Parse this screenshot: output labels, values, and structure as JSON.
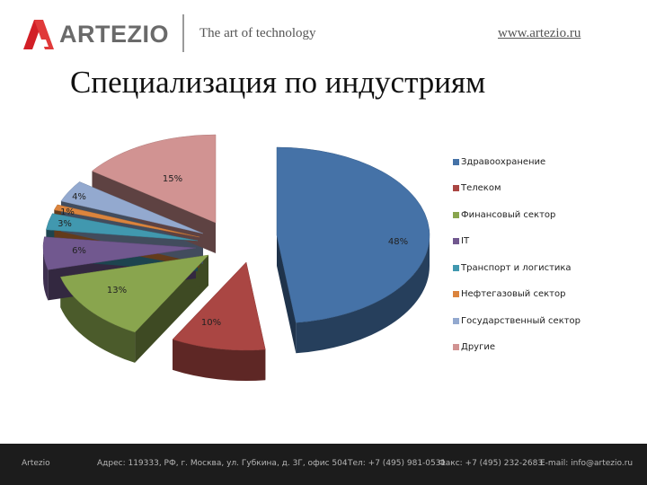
{
  "header": {
    "brand": "ARTEZIO",
    "tagline": "The art of technology",
    "website": "www.artezio.ru"
  },
  "slide": {
    "title": "Специализация по индустриям"
  },
  "chart_data": {
    "type": "pie",
    "three_d": true,
    "legend_position": "right",
    "series": [
      {
        "name": "Здравоохранение",
        "value": 48,
        "label": "48%",
        "color": "#4572A7"
      },
      {
        "name": "Телеком",
        "value": 10,
        "label": "10%",
        "color": "#AA4643"
      },
      {
        "name": "Финансовый сектор",
        "value": 13,
        "label": "13%",
        "color": "#89A54E"
      },
      {
        "name": "IT",
        "value": 6,
        "label": "6%",
        "color": "#71588F"
      },
      {
        "name": "Транспорт и логистика",
        "value": 3,
        "label": "3%",
        "color": "#4198AF"
      },
      {
        "name": "Нефтегазовый сектор",
        "value": 1,
        "label": "1%",
        "color": "#DB843D"
      },
      {
        "name": "Государственный сектор",
        "value": 4,
        "label": "4%",
        "color": "#93A9CF"
      },
      {
        "name": "Другие",
        "value": 15,
        "label": "15%",
        "color": "#D19392"
      }
    ]
  },
  "footer": {
    "company": "Artezio",
    "address": "Адрес: 119333, РФ, г. Москва, ул. Губкина, д. 3Г, офис 504",
    "phone": "Тел: +7 (495) 981-0531",
    "fax": "Факс: +7 (495) 232-2683",
    "email": "E-mail: info@artezio.ru"
  }
}
